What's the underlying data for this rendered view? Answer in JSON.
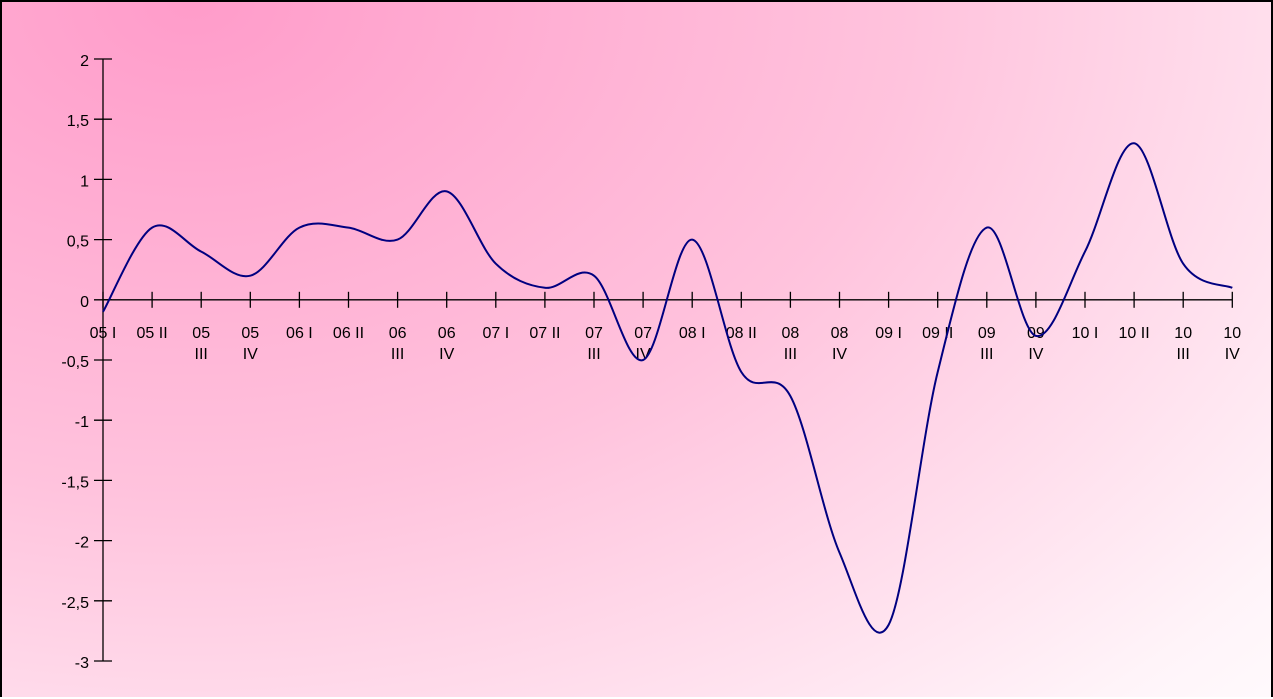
{
  "chart_data": {
    "type": "line",
    "title": "",
    "xlabel": "",
    "ylabel": "",
    "ylim": [
      -3,
      2
    ],
    "yticks": [
      "2",
      "1,5",
      "1",
      "0,5",
      "0",
      "-0,5",
      "-1",
      "-1,5",
      "-2",
      "-2,5",
      "-3"
    ],
    "categories": [
      [
        "05 I"
      ],
      [
        "05 II"
      ],
      [
        "05",
        "III"
      ],
      [
        "05",
        "IV"
      ],
      [
        "06 I"
      ],
      [
        "06 II"
      ],
      [
        "06",
        "III"
      ],
      [
        "06",
        "IV"
      ],
      [
        "07 I"
      ],
      [
        "07 II"
      ],
      [
        "07",
        "III"
      ],
      [
        "07",
        "IV"
      ],
      [
        "08 I"
      ],
      [
        "08 II"
      ],
      [
        "08",
        "III"
      ],
      [
        "08",
        "IV"
      ],
      [
        "09 I"
      ],
      [
        "09 II"
      ],
      [
        "09",
        "III"
      ],
      [
        "09",
        "IV"
      ],
      [
        "10 I"
      ],
      [
        "10 II"
      ],
      [
        "10",
        "III"
      ],
      [
        "10",
        "IV"
      ]
    ],
    "series": [
      {
        "color": "#000080",
        "smooth": true,
        "values": [
          -0.1,
          0.6,
          0.4,
          0.2,
          0.6,
          0.6,
          0.5,
          0.9,
          0.3,
          0.1,
          0.2,
          -0.5,
          0.5,
          -0.6,
          -0.8,
          -2.1,
          -2.7,
          -0.6,
          0.6,
          -0.3,
          0.4,
          1.3,
          0.3,
          0.1
        ]
      }
    ],
    "grid": false,
    "legend": "none"
  }
}
